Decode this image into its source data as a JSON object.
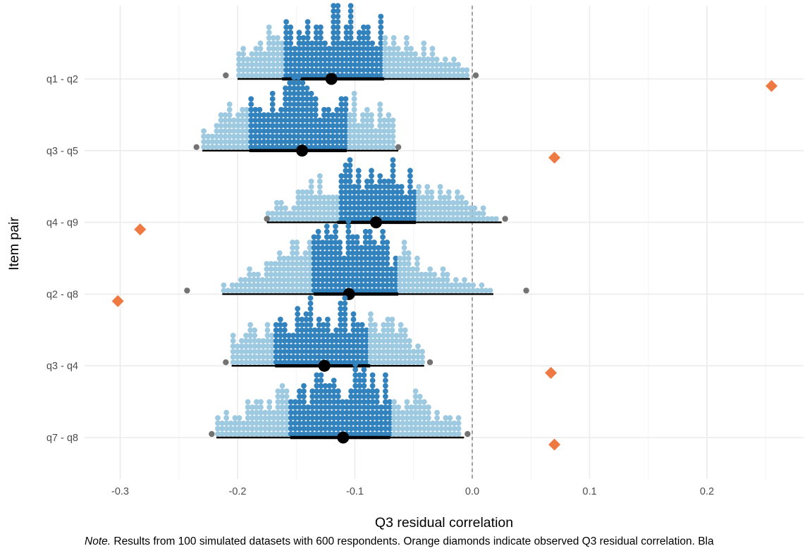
{
  "chart_data": {
    "type": "dotplot-interval",
    "xlabel": "Q3 residual correlation",
    "ylabel": "Item pair",
    "xlim": [
      -0.33,
      0.28
    ],
    "x_ticks": [
      -0.3,
      -0.2,
      -0.1,
      0.0,
      0.1,
      0.2
    ],
    "x_tick_labels": [
      "-0.3",
      "-0.2",
      "-0.1",
      "0.0",
      "0.1",
      "0.2"
    ],
    "reference_line_x": 0.0,
    "grid": true,
    "colors": {
      "dot_dark": "#3282bd",
      "dot_mid": "#9ecae1",
      "dot_light": "#deebf7",
      "extreme_dot": "#737373",
      "interval": "#000000",
      "observed": "#ee7942",
      "grid": "#ebebeb",
      "reference": "#7f7f7f"
    },
    "categories": [
      "q1 - q2",
      "q3 - q5",
      "q4 - q9",
      "q2 - q8",
      "q3 - q4",
      "q7 - q8"
    ],
    "series": [
      {
        "category": "q1 - q2",
        "median": -0.12,
        "interval_66": [
          -0.162,
          -0.075
        ],
        "interval_95": [
          -0.2,
          -0.002
        ],
        "min": -0.21,
        "max": 0.003,
        "observed": 0.255
      },
      {
        "category": "q3 - q5",
        "median": -0.145,
        "interval_66": [
          -0.19,
          -0.107
        ],
        "interval_95": [
          -0.23,
          -0.063
        ],
        "min": -0.235,
        "max": -0.063,
        "observed": 0.07
      },
      {
        "category": "q4 - q9",
        "median": -0.082,
        "interval_66": [
          -0.115,
          -0.048
        ],
        "interval_95": [
          -0.175,
          0.025
        ],
        "min": -0.175,
        "max": 0.028,
        "observed": -0.283
      },
      {
        "category": "q2 - q8",
        "median": -0.105,
        "interval_66": [
          -0.135,
          -0.063
        ],
        "interval_95": [
          -0.213,
          0.018
        ],
        "min": -0.243,
        "max": 0.046,
        "observed": -0.302
      },
      {
        "category": "q3 - q4",
        "median": -0.126,
        "interval_66": [
          -0.168,
          -0.087
        ],
        "interval_95": [
          -0.205,
          -0.041
        ],
        "min": -0.21,
        "max": -0.036,
        "observed": 0.067
      },
      {
        "category": "q7 - q8",
        "median": -0.11,
        "interval_66": [
          -0.155,
          -0.07
        ],
        "interval_95": [
          -0.218,
          -0.007
        ],
        "min": -0.222,
        "max": -0.004,
        "observed": 0.07
      }
    ]
  },
  "note": {
    "prefix": "Note.",
    "text": " Results from 100 simulated datasets with 600 respondents. Orange diamonds indicate observed Q3 residual correlation. Bla"
  }
}
